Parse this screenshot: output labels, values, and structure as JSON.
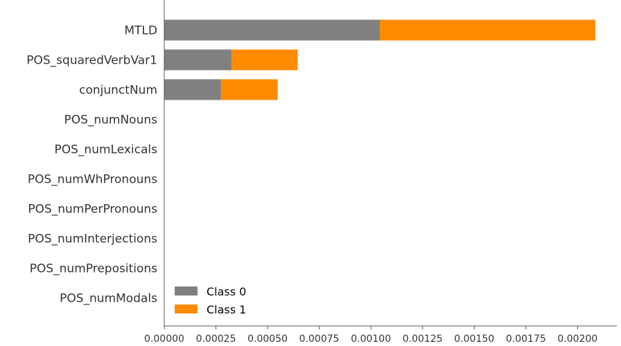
{
  "chart_data": {
    "type": "bar",
    "orientation": "horizontal",
    "stacked": true,
    "categories": [
      "MTLD",
      "POS_squaredVerbVar1",
      "conjunctNum",
      "POS_numNouns",
      "POS_numLexicals",
      "POS_numWhPronouns",
      "POS_numPerPronouns",
      "POS_numInterjections",
      "POS_numPrepositions",
      "POS_numModals"
    ],
    "series": [
      {
        "name": "Class 0",
        "color": "#808080",
        "values": [
          0.001043,
          0.000326,
          0.000274,
          0,
          0,
          0,
          0,
          0,
          0,
          0
        ]
      },
      {
        "name": "Class 1",
        "color": "#ff8c00",
        "values": [
          0.001043,
          0.00032,
          0.000275,
          0,
          0,
          0,
          0,
          0,
          0,
          0
        ]
      }
    ],
    "xlim": [
      0,
      0.00219
    ],
    "xticks": [
      "0.00000",
      "0.00025",
      "0.00050",
      "0.00075",
      "0.00100",
      "0.00125",
      "0.00150",
      "0.00175",
      "0.00200"
    ],
    "xtick_values": [
      0,
      0.00025,
      0.0005,
      0.00075,
      0.001,
      0.00125,
      0.0015,
      0.00175,
      0.002
    ],
    "grid": false,
    "legend_position": "lower-left"
  }
}
